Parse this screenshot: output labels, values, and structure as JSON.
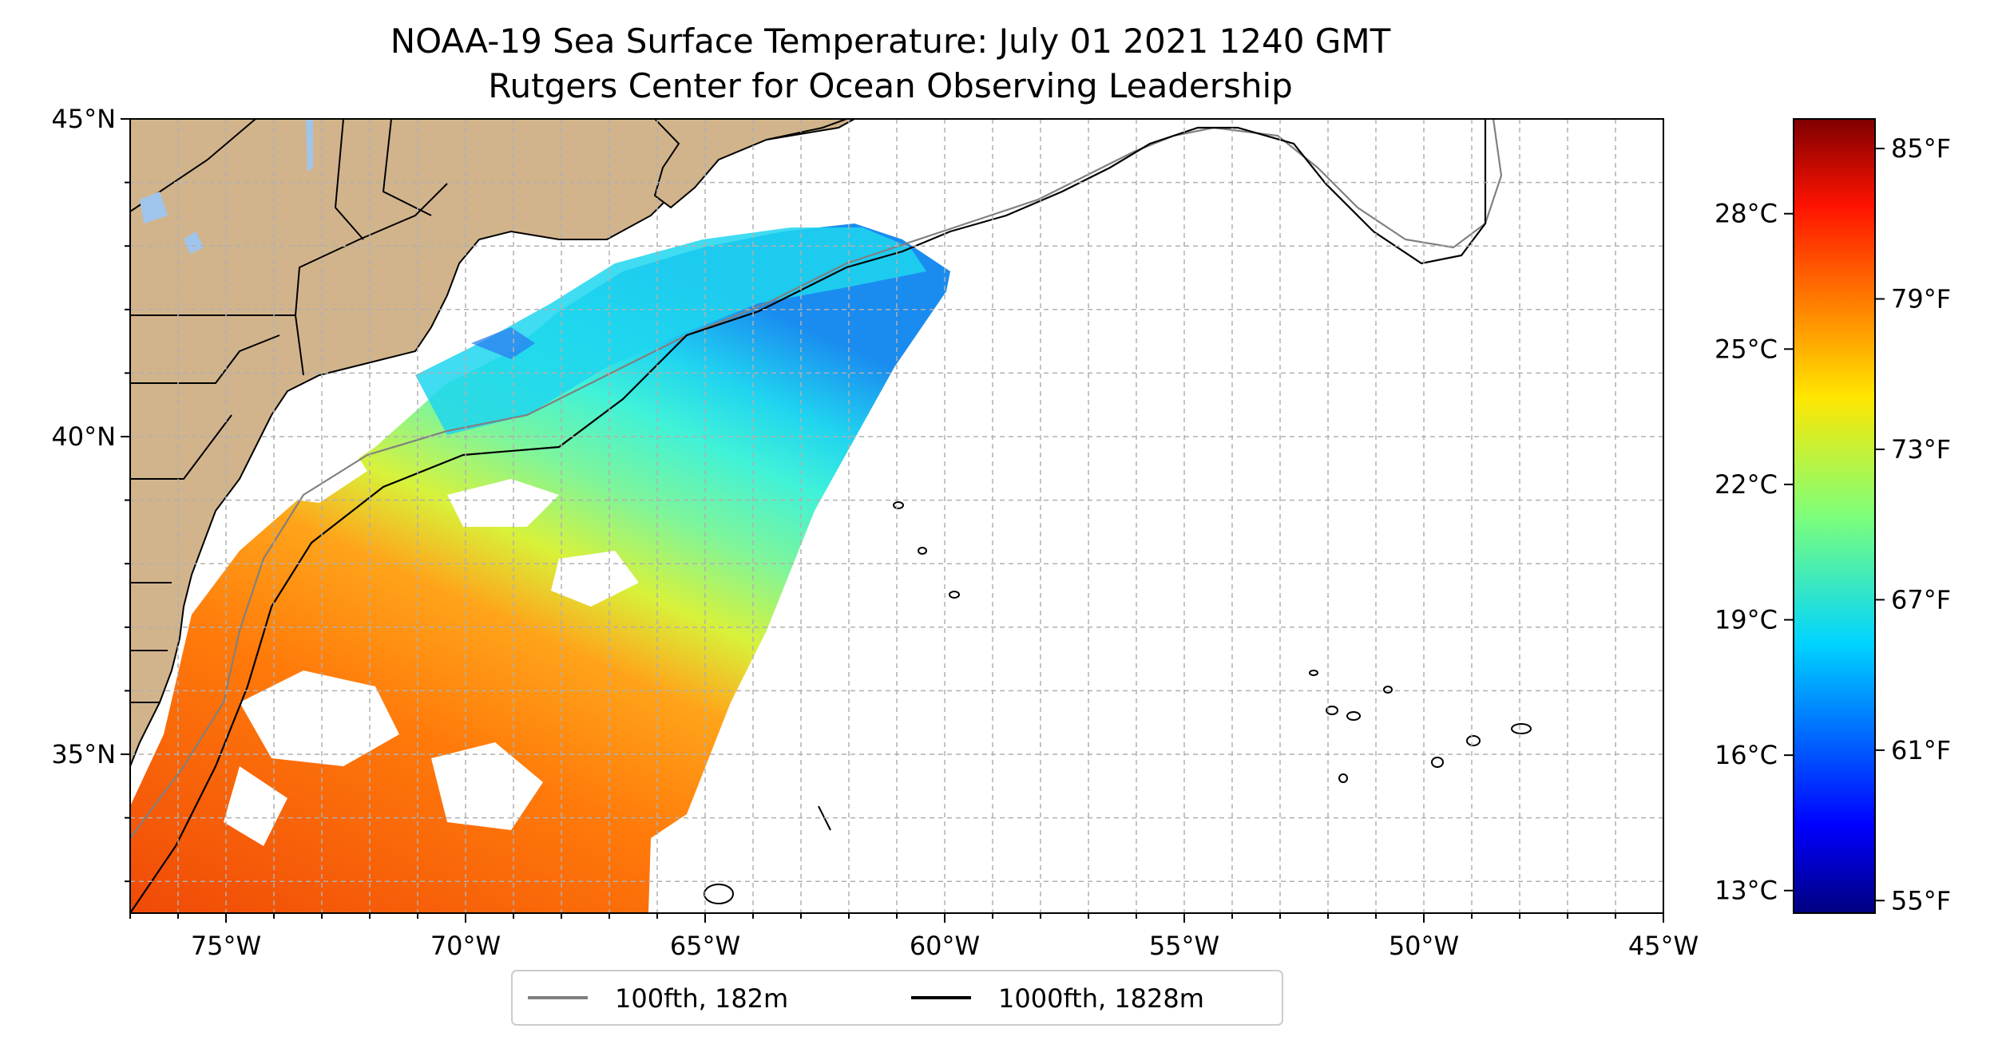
{
  "title_line1": "NOAA-19 Sea Surface Temperature: July 01 2021 1240 GMT",
  "title_line2": "Rutgers Center for Ocean Observing Leadership",
  "map": {
    "lon_range": [
      -77,
      -45
    ],
    "lat_range": [
      32.5,
      45
    ],
    "gridlines": true,
    "land_color": "#d2b48c",
    "lake_color": "#9fc5ec",
    "lon_ticks": [
      {
        "value": -75,
        "label": "75°W"
      },
      {
        "value": -70,
        "label": "70°W"
      },
      {
        "value": -65,
        "label": "65°W"
      },
      {
        "value": -60,
        "label": "60°W"
      },
      {
        "value": -55,
        "label": "55°W"
      },
      {
        "value": -50,
        "label": "50°W"
      },
      {
        "value": -45,
        "label": "45°W"
      }
    ],
    "lat_ticks": [
      {
        "value": 45,
        "label": "45°N"
      },
      {
        "value": 40,
        "label": "40°N"
      },
      {
        "value": 35,
        "label": "35°N"
      }
    ]
  },
  "colorbar": {
    "colormap": "jet",
    "range_c": [
      12.5,
      30.1
    ],
    "celsius_ticks": [
      {
        "value": 13,
        "label": "13°C"
      },
      {
        "value": 16,
        "label": "16°C"
      },
      {
        "value": 19,
        "label": "19°C"
      },
      {
        "value": 22,
        "label": "22°C"
      },
      {
        "value": 25,
        "label": "25°C"
      },
      {
        "value": 28,
        "label": "28°C"
      }
    ],
    "fahrenheit_ticks": [
      {
        "value": 55,
        "label": "55°F"
      },
      {
        "value": 61,
        "label": "61°F"
      },
      {
        "value": 67,
        "label": "67°F"
      },
      {
        "value": 73,
        "label": "73°F"
      },
      {
        "value": 79,
        "label": "79°F"
      },
      {
        "value": 85,
        "label": "85°F"
      }
    ]
  },
  "legend": {
    "placement": "bottom-center",
    "items": [
      {
        "label": "100fth, 182m",
        "color": "#808080"
      },
      {
        "label": "1000fth, 1828m",
        "color": "#000000"
      }
    ]
  }
}
